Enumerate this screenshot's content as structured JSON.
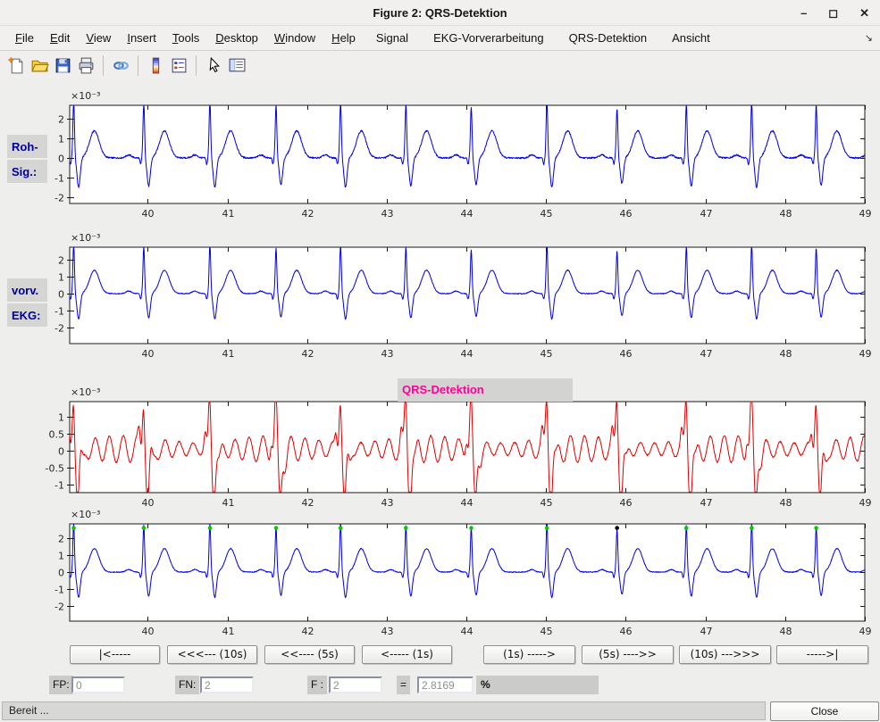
{
  "window": {
    "title": "Figure 2: QRS-Detektion",
    "minimize_glyph": "–",
    "maximize_glyph": "◻",
    "close_glyph": "✕"
  },
  "menu": {
    "dock_arrow_glyph": "↘",
    "items": [
      {
        "label": "File",
        "mnemonic": true
      },
      {
        "label": "Edit",
        "mnemonic": true
      },
      {
        "label": "View",
        "mnemonic": true
      },
      {
        "label": "Insert",
        "mnemonic": true
      },
      {
        "label": "Tools",
        "mnemonic": true
      },
      {
        "label": "Desktop",
        "mnemonic": true
      },
      {
        "label": "Window",
        "mnemonic": true
      },
      {
        "label": "Help",
        "mnemonic": true
      },
      {
        "label": "Signal",
        "mnemonic": false
      },
      {
        "label": "EKG-Vorverarbeitung",
        "mnemonic": false
      },
      {
        "label": "QRS-Detektion",
        "mnemonic": false
      },
      {
        "label": "Ansicht",
        "mnemonic": false
      }
    ]
  },
  "toolbar": {
    "items": [
      "new-figure",
      "open-file",
      "save-figure",
      "print-figure",
      "separator",
      "link-plot",
      "separator",
      "insert-colorbar",
      "insert-legend",
      "separator",
      "edit-plot",
      "plot-browser"
    ]
  },
  "figure": {
    "background_color": "#eeeeec",
    "side_labels": [
      "Roh-",
      "Sig.:",
      "vorv.",
      "EKG:"
    ],
    "side_label_color": "#000099",
    "qrs_title": "QRS-Detektion",
    "qrs_title_color": "#ff0099"
  },
  "chart_data": [
    {
      "name": "raw-signal",
      "type": "line",
      "title": "Roh-Sig.: (raw ECG signal)",
      "line_color": "#0000dd",
      "xlim_s": [
        39.02,
        49.0
      ],
      "ylim_e3": [
        -2.32,
        2.68
      ],
      "xtick_values": [
        40,
        41,
        42,
        43,
        44,
        45,
        46,
        47,
        48,
        49
      ],
      "ytick_values_e3": [
        2,
        1,
        0,
        -1,
        -2
      ],
      "y_exponent_label": "×10⁻³",
      "signal": "ecg",
      "noise_e3": 0.08,
      "beat_times_s": [
        38.25,
        39.07,
        39.95,
        40.78,
        41.61,
        42.42,
        43.24,
        44.06,
        45.01,
        45.89,
        46.76,
        47.58,
        48.39,
        49.21
      ],
      "beat_amp_scale": [
        1,
        1,
        0.96,
        1,
        0.92,
        1,
        0.95,
        0.9,
        1,
        0.87,
        0.95,
        1,
        0.93,
        1
      ]
    },
    {
      "name": "preprocessed-ecg",
      "type": "line",
      "title": "vorv. EKG: (preprocessed ECG)",
      "line_color": "#0000dd",
      "xlim_s": [
        39.02,
        49.0
      ],
      "ylim_e3": [
        -2.95,
        2.74
      ],
      "xtick_values": [
        40,
        41,
        42,
        43,
        44,
        45,
        46,
        47,
        48,
        49
      ],
      "ytick_values_e3": [
        2,
        1,
        0,
        -1,
        -2
      ],
      "y_exponent_label": "×10⁻³",
      "signal": "ecg",
      "noise_e3": 0.05,
      "beat_times_s": [
        38.25,
        39.07,
        39.95,
        40.78,
        41.61,
        42.42,
        43.24,
        44.06,
        45.01,
        45.89,
        46.76,
        47.58,
        48.39,
        49.21
      ],
      "beat_amp_scale": [
        1,
        1,
        0.96,
        1,
        0.92,
        1,
        0.95,
        0.9,
        1,
        0.87,
        0.95,
        1,
        0.93,
        1
      ]
    },
    {
      "name": "qrs-detection-function",
      "type": "line",
      "title": "QRS-Detektion (bandpass-filtered detection signal)",
      "line_color": "#dd0000",
      "xlim_s": [
        39.02,
        49.0
      ],
      "ylim_e3": [
        -1.24,
        1.45
      ],
      "xtick_values": [
        40,
        41,
        42,
        43,
        44,
        45,
        46,
        47,
        48,
        49
      ],
      "ytick_values_e3": [
        1,
        0.5,
        0,
        -0.5,
        -1
      ],
      "y_exponent_label": "×10⁻³",
      "signal": "bandpass",
      "noise_e3": 0.04,
      "beat_times_s": [
        38.25,
        39.07,
        39.95,
        40.78,
        41.61,
        42.42,
        43.24,
        44.06,
        45.01,
        45.89,
        46.76,
        47.58,
        48.39,
        49.21
      ]
    },
    {
      "name": "ecg-with-detections",
      "type": "line",
      "title": "ECG with detected R peaks",
      "line_color": "#0000dd",
      "xlim_s": [
        39.02,
        49.0
      ],
      "ylim_e3": [
        -2.89,
        2.84
      ],
      "xtick_values": [
        40,
        41,
        42,
        43,
        44,
        45,
        46,
        47,
        48,
        49
      ],
      "ytick_values_e3": [
        2,
        1,
        0,
        -1,
        -2
      ],
      "y_exponent_label": "×10⁻³",
      "signal": "ecg",
      "noise_e3": 0.05,
      "beat_times_s": [
        38.25,
        39.07,
        39.95,
        40.78,
        41.61,
        42.42,
        43.24,
        44.06,
        45.01,
        45.89,
        46.76,
        47.58,
        48.39,
        49.21
      ],
      "beat_amp_scale": [
        1,
        1,
        0.96,
        1,
        0.92,
        1,
        0.95,
        0.9,
        1,
        0.87,
        0.95,
        1,
        0.93,
        1
      ],
      "detections": {
        "marker": "dot",
        "value_e3": 2.6,
        "times_s": [
          39.07,
          39.95,
          40.78,
          41.61,
          42.42,
          43.24,
          44.06,
          45.01,
          45.89,
          46.76,
          47.58,
          48.39
        ],
        "colors": [
          "#00cc00",
          "#00cc00",
          "#00cc00",
          "#00cc00",
          "#00cc00",
          "#00cc00",
          "#00cc00",
          "#00cc00",
          "#000000",
          "#00cc00",
          "#00cc00",
          "#00cc00"
        ]
      }
    }
  ],
  "nav_buttons": [
    {
      "name": "jump-to-start",
      "label": "|<-----"
    },
    {
      "name": "back-10s",
      "label": "<<<--- (10s)"
    },
    {
      "name": "back-5s",
      "label": "<<---- (5s)"
    },
    {
      "name": "back-1s",
      "label": "<----- (1s)"
    },
    {
      "name": "forward-1s",
      "label": "(1s) ----->"
    },
    {
      "name": "forward-5s",
      "label": "(5s) ---->>"
    },
    {
      "name": "forward-10s",
      "label": "(10s) --->>>"
    },
    {
      "name": "jump-to-end",
      "label": "----->|"
    }
  ],
  "stats": {
    "fp_label": "FP:",
    "fp_value": "0",
    "fn_label": "FN:",
    "fn_value": "2",
    "f_label": "F :",
    "f_value": "2",
    "equals_sign": "=",
    "percent_value": "2.8169",
    "percent_sign": "%"
  },
  "statusbar": {
    "text": "Bereit ...",
    "close_label": "Close"
  }
}
